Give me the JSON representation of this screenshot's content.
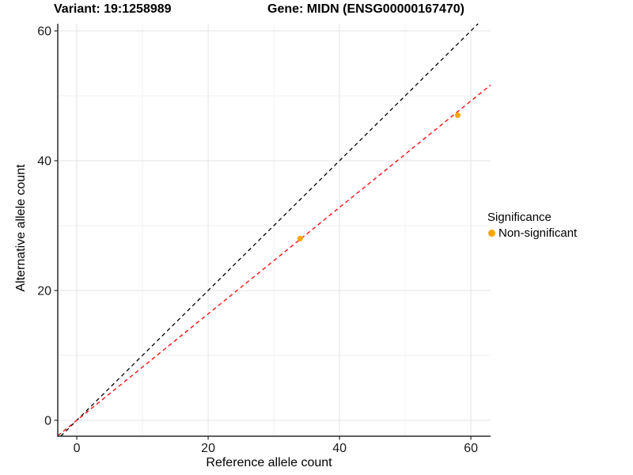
{
  "chart_data": {
    "type": "scatter",
    "title_left": "Variant: 19:1258989",
    "title_right": "Gene: MIDN (ENSG00000167470)",
    "xlabel": "Reference allele count",
    "ylabel": "Alternative allele count",
    "xlim": [
      -2.9,
      63.0
    ],
    "ylim": [
      -2.45,
      61.1
    ],
    "x_ticks": [
      0,
      20,
      40,
      60
    ],
    "y_ticks": [
      0,
      20,
      40,
      60
    ],
    "x_minor_ticks": [
      10,
      30,
      50
    ],
    "y_minor_ticks": [
      10,
      30,
      50
    ],
    "grid": true,
    "series": [
      {
        "name": "Non-significant",
        "color": "#FFA500",
        "points": [
          {
            "x": 34,
            "y": 28
          },
          {
            "x": 58,
            "y": 47
          }
        ]
      }
    ],
    "lines": [
      {
        "name": "identity-line",
        "slope": 1.0,
        "intercept": 0,
        "color": "#000000",
        "style": "dashed"
      },
      {
        "name": "fit-line",
        "slope": 0.82,
        "intercept": 0,
        "color": "#FF0000",
        "style": "dashed"
      }
    ],
    "legend": {
      "title": "Significance",
      "position": "right",
      "entries": [
        {
          "label": "Non-significant",
          "color": "#FFA500"
        }
      ]
    },
    "colors": {
      "major_grid": "#e3e3e3",
      "minor_grid": "#f1f1f1",
      "axis_line": "#2b2b2b",
      "tick_text": "#1a1a1a"
    }
  }
}
